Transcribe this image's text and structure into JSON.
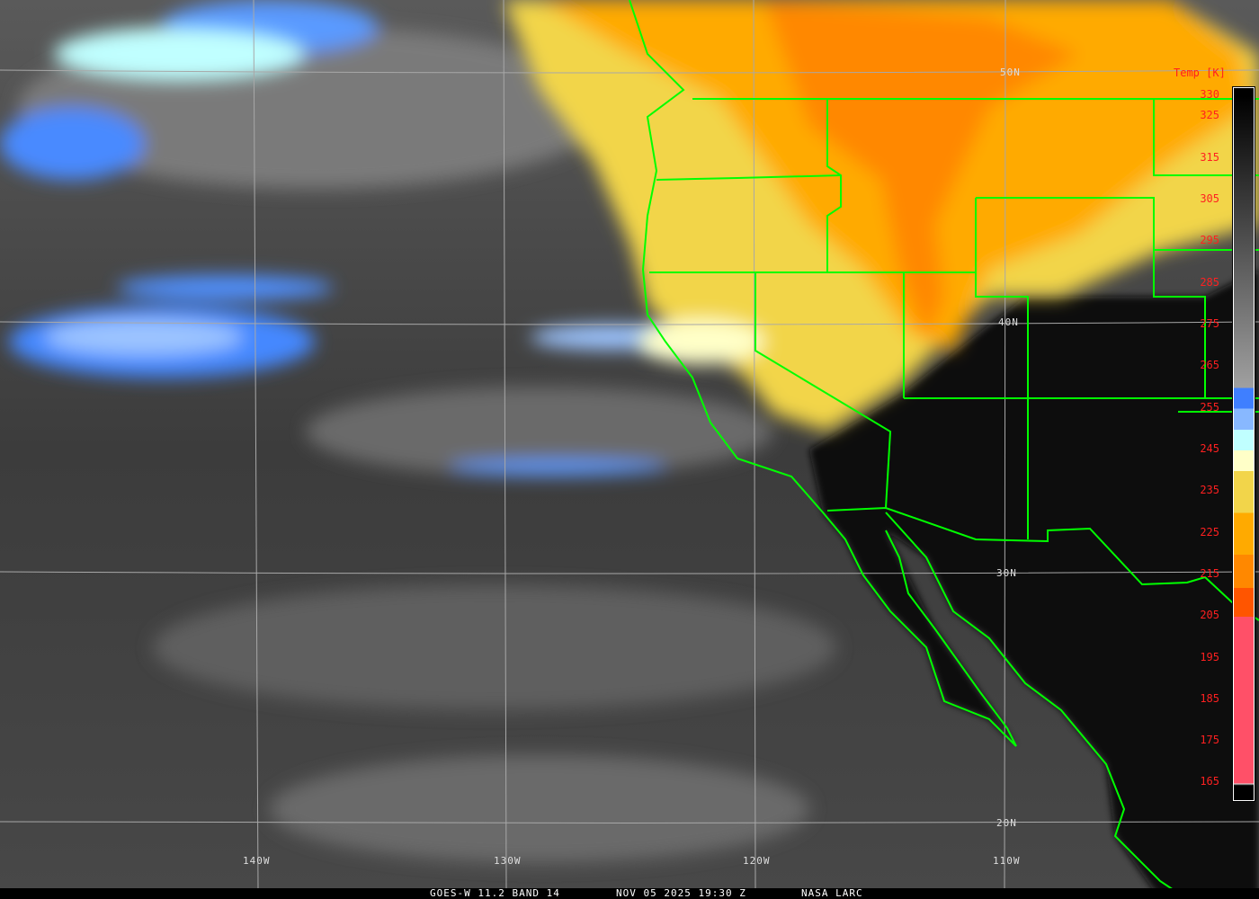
{
  "caption": {
    "satellite": "GOES-W 11.2 BAND 14",
    "datetime": "NOV 05 2025 19:30 Z",
    "source": "NASA LARC"
  },
  "legend": {
    "title": "Temp [K]",
    "ticks": [
      "330",
      "325",
      "315",
      "305",
      "295",
      "285",
      "275",
      "265",
      "255",
      "245",
      "235",
      "225",
      "215",
      "205",
      "195",
      "185",
      "175",
      "165"
    ],
    "tick_values": [
      330,
      325,
      315,
      305,
      295,
      285,
      275,
      265,
      255,
      245,
      235,
      225,
      215,
      205,
      195,
      185,
      175,
      165
    ],
    "color_stops": [
      {
        "from": 330,
        "to": 260,
        "color": "gradient #000000 to #a0a0a0"
      },
      {
        "from": 260,
        "to": 255,
        "color": "#3f7fff"
      },
      {
        "from": 255,
        "to": 250,
        "color": "#88b8ff"
      },
      {
        "from": 250,
        "to": 245,
        "color": "#c0ffff"
      },
      {
        "from": 245,
        "to": 240,
        "color": "#ffffc8"
      },
      {
        "from": 240,
        "to": 230,
        "color": "#f2d54a"
      },
      {
        "from": 230,
        "to": 220,
        "color": "#ffaa00"
      },
      {
        "from": 220,
        "to": 212,
        "color": "#ff8800"
      },
      {
        "from": 212,
        "to": 205,
        "color": "#ff5500"
      },
      {
        "from": 205,
        "to": 165,
        "color": "#ff5068"
      }
    ]
  },
  "grid": {
    "longitudes": [
      "140W",
      "130W",
      "120W",
      "110W"
    ],
    "latitudes": [
      "50N",
      "40N",
      "30N",
      "20N"
    ]
  },
  "colors": {
    "borders": "#00ff00",
    "grid": "#a0a0a0",
    "labels": "#ff2020"
  }
}
